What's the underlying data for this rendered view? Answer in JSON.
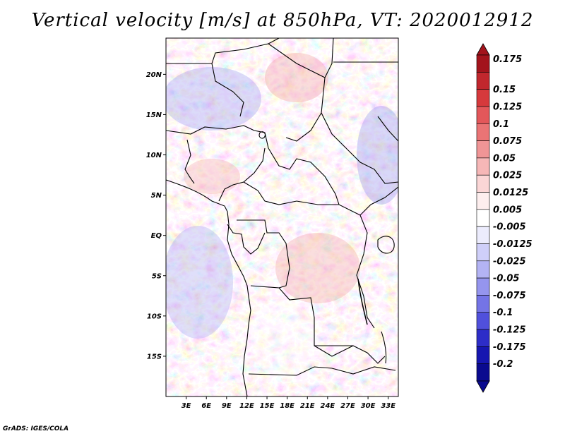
{
  "title": "Vertical velocity [m/s] at 850hPa, VT: 2020012912",
  "credit": "GrADS: IGES/COLA",
  "map": {
    "lon_range": [
      0,
      34.5
    ],
    "lat_range": [
      -20,
      24.5
    ],
    "lat_ticks": [
      {
        "value": 20,
        "label": "20N"
      },
      {
        "value": 15,
        "label": "15N"
      },
      {
        "value": 10,
        "label": "10N"
      },
      {
        "value": 5,
        "label": "5N"
      },
      {
        "value": 0,
        "label": "EQ"
      },
      {
        "value": -5,
        "label": "5S"
      },
      {
        "value": -10,
        "label": "10S"
      },
      {
        "value": -15,
        "label": "15S"
      }
    ],
    "lon_ticks": [
      {
        "value": 3,
        "label": "3E"
      },
      {
        "value": 6,
        "label": "6E"
      },
      {
        "value": 9,
        "label": "9E"
      },
      {
        "value": 12,
        "label": "12E"
      },
      {
        "value": 15,
        "label": "15E"
      },
      {
        "value": 18,
        "label": "18E"
      },
      {
        "value": 21,
        "label": "21E"
      },
      {
        "value": 24,
        "label": "24E"
      },
      {
        "value": 27,
        "label": "27E"
      },
      {
        "value": 30,
        "label": "30E"
      },
      {
        "value": 33,
        "label": "33E"
      }
    ]
  },
  "colorbar": {
    "labels": [
      "0.175",
      "0.15",
      "0.125",
      "0.1",
      "0.075",
      "0.05",
      "0.025",
      "0.0125",
      "0.005",
      "-0.005",
      "-0.0125",
      "-0.025",
      "-0.05",
      "-0.075",
      "-0.1",
      "-0.125",
      "-0.175",
      "-0.2"
    ],
    "colors": [
      "#a3141c",
      "#c1272d",
      "#d6393c",
      "#e3575a",
      "#ea7475",
      "#f09596",
      "#f6b7b7",
      "#fbd6d6",
      "#fdeeee",
      "#ffffff",
      "#ececfd",
      "#cfcff9",
      "#b3b3f4",
      "#9595ee",
      "#7474e6",
      "#5050dc",
      "#2d2dc8",
      "#1616b0",
      "#0a0a8f"
    ],
    "unit": "m/s"
  }
}
